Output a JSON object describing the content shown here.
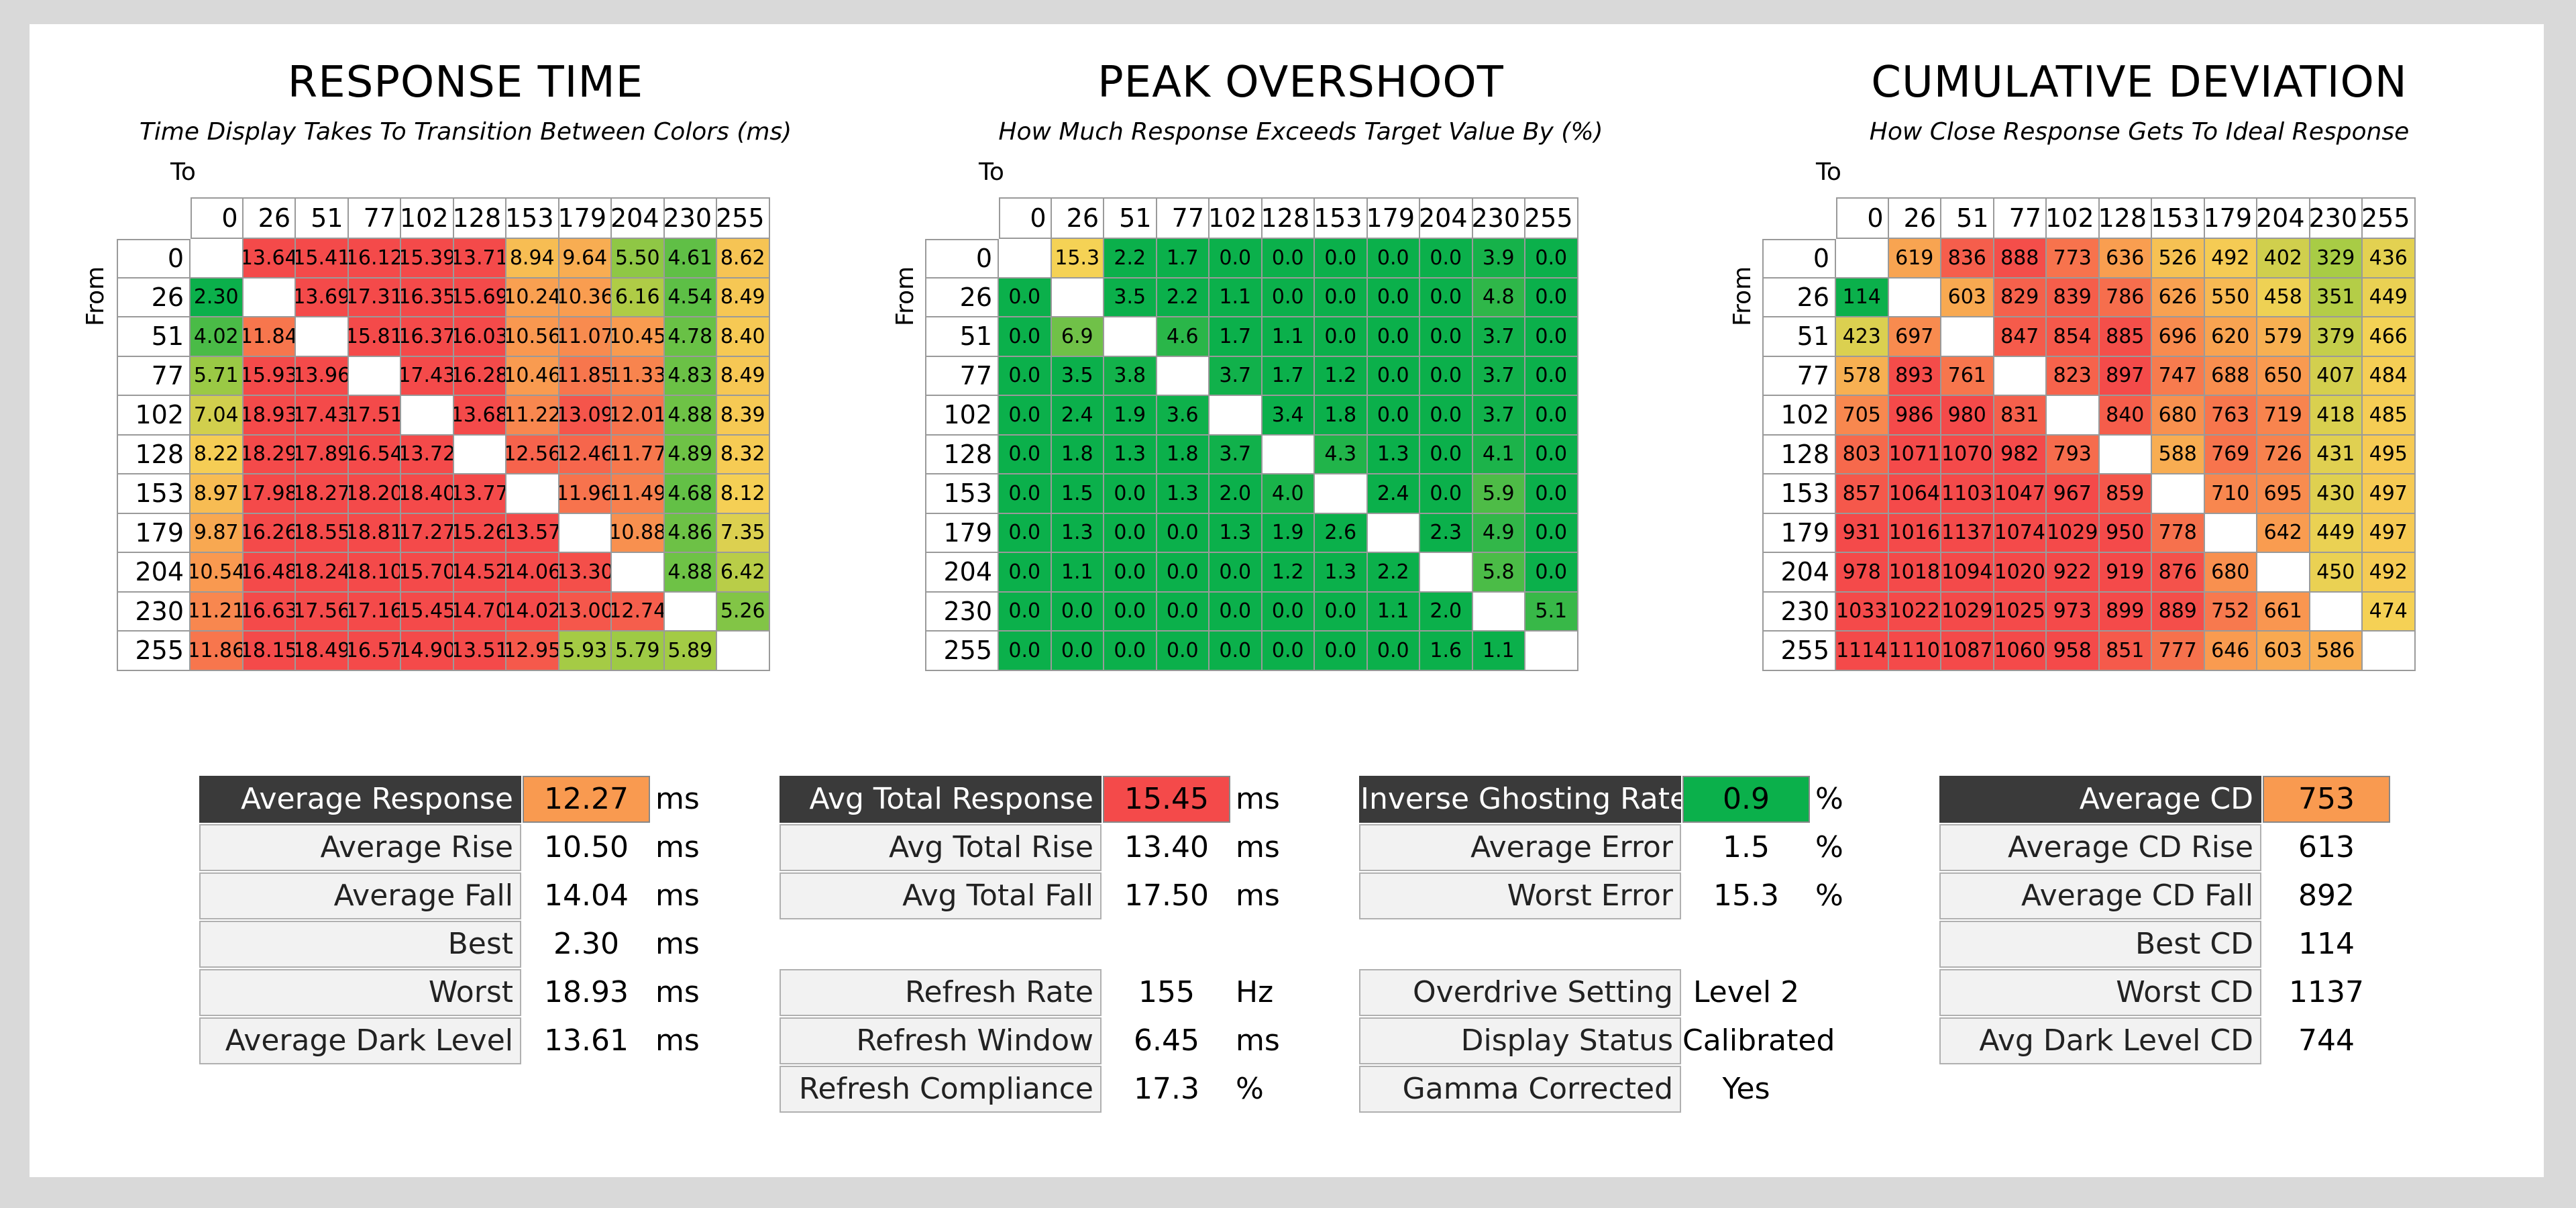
{
  "colors": {
    "green": "#0bb04b",
    "light_green": "#5fbf46",
    "yellow_green": "#a9cc45",
    "yellow": "#f5d255",
    "orange": "#f99a50",
    "red": "#f44a4a",
    "dark_label": "#3a3a3a"
  },
  "axes": {
    "levels": [
      "0",
      "26",
      "51",
      "77",
      "102",
      "128",
      "153",
      "179",
      "204",
      "230",
      "255"
    ],
    "to_label": "To",
    "from_label": "From"
  },
  "chart_data": [
    {
      "type": "heatmap",
      "title": "RESPONSE TIME",
      "subtitle": "Time Display Takes To Transition Between Colors (ms)",
      "xlabel": "To",
      "ylabel": "From",
      "x": [
        "0",
        "26",
        "51",
        "77",
        "102",
        "128",
        "153",
        "179",
        "204",
        "230",
        "255"
      ],
      "y": [
        "0",
        "26",
        "51",
        "77",
        "102",
        "128",
        "153",
        "179",
        "204",
        "230",
        "255"
      ],
      "decimals": 2,
      "values": [
        [
          null,
          13.64,
          15.41,
          16.12,
          15.39,
          13.71,
          8.94,
          9.64,
          5.5,
          4.61,
          8.62
        ],
        [
          2.3,
          null,
          13.69,
          17.31,
          16.35,
          15.69,
          10.24,
          10.36,
          6.16,
          4.54,
          8.49
        ],
        [
          4.02,
          11.84,
          null,
          15.81,
          16.37,
          16.03,
          10.56,
          11.07,
          10.45,
          4.78,
          8.4
        ],
        [
          5.71,
          15.93,
          13.96,
          null,
          17.43,
          16.28,
          10.46,
          11.85,
          11.33,
          4.83,
          8.49
        ],
        [
          7.04,
          18.93,
          17.43,
          17.51,
          null,
          13.68,
          11.22,
          13.09,
          12.01,
          4.88,
          8.39
        ],
        [
          8.22,
          18.29,
          17.89,
          16.54,
          13.72,
          null,
          12.56,
          12.46,
          11.77,
          4.89,
          8.32
        ],
        [
          8.97,
          17.98,
          18.27,
          18.2,
          18.4,
          13.77,
          null,
          11.96,
          11.49,
          4.68,
          8.12
        ],
        [
          9.87,
          16.26,
          18.55,
          18.81,
          17.27,
          15.26,
          13.57,
          null,
          10.88,
          4.86,
          7.35
        ],
        [
          10.54,
          16.48,
          18.24,
          18.1,
          15.7,
          14.52,
          14.06,
          13.3,
          null,
          4.88,
          6.42
        ],
        [
          11.21,
          16.63,
          17.56,
          17.16,
          15.45,
          14.7,
          14.02,
          13.0,
          12.74,
          null,
          5.26
        ],
        [
          11.86,
          18.15,
          18.49,
          16.57,
          14.9,
          13.51,
          12.95,
          5.93,
          5.79,
          5.89,
          null
        ]
      ]
    },
    {
      "type": "heatmap",
      "title": "PEAK OVERSHOOT",
      "subtitle": "How Much Response Exceeds Target Value By (%)",
      "xlabel": "To",
      "ylabel": "From",
      "x": [
        "0",
        "26",
        "51",
        "77",
        "102",
        "128",
        "153",
        "179",
        "204",
        "230",
        "255"
      ],
      "y": [
        "0",
        "26",
        "51",
        "77",
        "102",
        "128",
        "153",
        "179",
        "204",
        "230",
        "255"
      ],
      "decimals": 1,
      "values": [
        [
          null,
          15.3,
          2.2,
          1.7,
          0.0,
          0.0,
          0.0,
          0.0,
          0.0,
          3.9,
          0.0
        ],
        [
          0.0,
          null,
          3.5,
          2.2,
          1.1,
          0.0,
          0.0,
          0.0,
          0.0,
          4.8,
          0.0
        ],
        [
          0.0,
          6.9,
          null,
          4.6,
          1.7,
          1.1,
          0.0,
          0.0,
          0.0,
          3.7,
          0.0
        ],
        [
          0.0,
          3.5,
          3.8,
          null,
          3.7,
          1.7,
          1.2,
          0.0,
          0.0,
          3.7,
          0.0
        ],
        [
          0.0,
          2.4,
          1.9,
          3.6,
          null,
          3.4,
          1.8,
          0.0,
          0.0,
          3.7,
          0.0
        ],
        [
          0.0,
          1.8,
          1.3,
          1.8,
          3.7,
          null,
          4.3,
          1.3,
          0.0,
          4.1,
          0.0
        ],
        [
          0.0,
          1.5,
          0.0,
          1.3,
          2.0,
          4.0,
          null,
          2.4,
          0.0,
          5.9,
          0.0
        ],
        [
          0.0,
          1.3,
          0.0,
          0.0,
          1.3,
          1.9,
          2.6,
          null,
          2.3,
          4.9,
          0.0
        ],
        [
          0.0,
          1.1,
          0.0,
          0.0,
          0.0,
          1.2,
          1.3,
          2.2,
          null,
          5.8,
          0.0
        ],
        [
          0.0,
          0.0,
          0.0,
          0.0,
          0.0,
          0.0,
          0.0,
          1.1,
          2.0,
          null,
          5.1
        ],
        [
          0.0,
          0.0,
          0.0,
          0.0,
          0.0,
          0.0,
          0.0,
          0.0,
          1.6,
          1.1,
          null
        ]
      ]
    },
    {
      "type": "heatmap",
      "title": "CUMULATIVE DEVIATION",
      "subtitle": "How Close Response Gets To Ideal Response",
      "xlabel": "To",
      "ylabel": "From",
      "x": [
        "0",
        "26",
        "51",
        "77",
        "102",
        "128",
        "153",
        "179",
        "204",
        "230",
        "255"
      ],
      "y": [
        "0",
        "26",
        "51",
        "77",
        "102",
        "128",
        "153",
        "179",
        "204",
        "230",
        "255"
      ],
      "decimals": 0,
      "values": [
        [
          null,
          619,
          836,
          888,
          773,
          636,
          526,
          492,
          402,
          329,
          436
        ],
        [
          114,
          null,
          603,
          829,
          839,
          786,
          626,
          550,
          458,
          351,
          449
        ],
        [
          423,
          697,
          null,
          847,
          854,
          885,
          696,
          620,
          579,
          379,
          466
        ],
        [
          578,
          893,
          761,
          null,
          823,
          897,
          747,
          688,
          650,
          407,
          484
        ],
        [
          705,
          986,
          980,
          831,
          null,
          840,
          680,
          763,
          719,
          418,
          485
        ],
        [
          803,
          1071,
          1070,
          982,
          793,
          null,
          588,
          769,
          726,
          431,
          495
        ],
        [
          857,
          1064,
          1103,
          1047,
          967,
          859,
          null,
          710,
          695,
          430,
          497
        ],
        [
          931,
          1016,
          1137,
          1074,
          1029,
          950,
          778,
          null,
          642,
          449,
          497
        ],
        [
          978,
          1018,
          1094,
          1020,
          922,
          919,
          876,
          680,
          null,
          450,
          492
        ],
        [
          1033,
          1022,
          1029,
          1025,
          973,
          899,
          889,
          752,
          661,
          null,
          474
        ],
        [
          1114,
          1110,
          1087,
          1060,
          958,
          851,
          777,
          646,
          603,
          586,
          null
        ]
      ]
    }
  ],
  "stats": {
    "response": {
      "rows": [
        {
          "label": "Average Response",
          "value": "12.27",
          "unit": "ms",
          "style": "header",
          "value_color": "#f99a50"
        },
        {
          "label": "Average Rise",
          "value": "10.50",
          "unit": "ms"
        },
        {
          "label": "Average Fall",
          "value": "14.04",
          "unit": "ms"
        },
        {
          "label": "Best",
          "value": "2.30",
          "unit": "ms"
        },
        {
          "label": "Worst",
          "value": "18.93",
          "unit": "ms"
        },
        {
          "label": "Average Dark Level",
          "value": "13.61",
          "unit": "ms"
        }
      ]
    },
    "total": {
      "rows": [
        {
          "label": "Avg Total Response",
          "value": "15.45",
          "unit": "ms",
          "style": "header",
          "value_color": "#f44a4a"
        },
        {
          "label": "Avg Total Rise",
          "value": "13.40",
          "unit": "ms"
        },
        {
          "label": "Avg Total Fall",
          "value": "17.50",
          "unit": "ms"
        },
        {
          "label": "Refresh Rate",
          "value": "155",
          "unit": "Hz"
        },
        {
          "label": "Refresh Window",
          "value": "6.45",
          "unit": "ms"
        },
        {
          "label": "Refresh Compliance",
          "value": "17.3",
          "unit": "%"
        }
      ]
    },
    "overshoot": {
      "rows": [
        {
          "label": "Inverse Ghosting Rate",
          "value": "0.9",
          "unit": "%",
          "style": "header",
          "value_color": "#0bb04b"
        },
        {
          "label": "Average Error",
          "value": "1.5",
          "unit": "%"
        },
        {
          "label": "Worst Error",
          "value": "15.3",
          "unit": "%"
        },
        {
          "label": "Overdrive Setting",
          "value": "Level 2",
          "unit": ""
        },
        {
          "label": "Display Status",
          "value": "Calibrated",
          "unit": ""
        },
        {
          "label": "Gamma Corrected",
          "value": "Yes",
          "unit": ""
        }
      ]
    },
    "cd": {
      "rows": [
        {
          "label": "Average CD",
          "value": "753",
          "unit": "",
          "style": "header",
          "value_color": "#f99a50"
        },
        {
          "label": "Average CD Rise",
          "value": "613",
          "unit": ""
        },
        {
          "label": "Average CD Fall",
          "value": "892",
          "unit": ""
        },
        {
          "label": "Best CD",
          "value": "114",
          "unit": ""
        },
        {
          "label": "Worst CD",
          "value": "1137",
          "unit": ""
        },
        {
          "label": "Avg Dark Level CD",
          "value": "744",
          "unit": ""
        }
      ]
    }
  }
}
